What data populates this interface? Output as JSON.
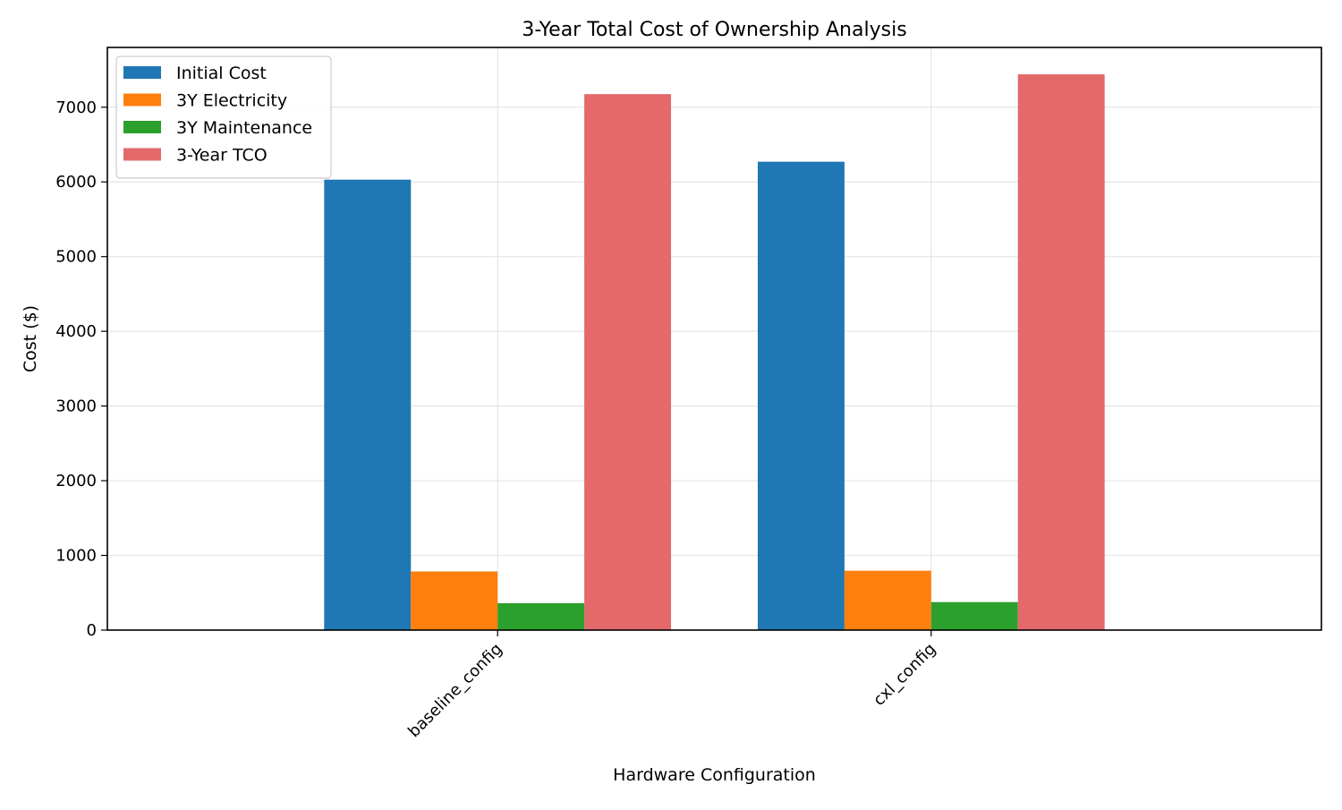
{
  "chart_data": {
    "type": "bar",
    "title": "3-Year Total Cost of Ownership Analysis",
    "xlabel": "Hardware Configuration",
    "ylabel": "Cost ($)",
    "categories": [
      "baseline_config",
      "cxl_config"
    ],
    "series": [
      {
        "name": "Initial Cost",
        "color": "#1f77b4",
        "values": [
          6030,
          6270
        ]
      },
      {
        "name": "3Y Electricity",
        "color": "#ff7f0e",
        "values": [
          785,
          795
        ]
      },
      {
        "name": "3Y Maintenance",
        "color": "#2ca02c",
        "values": [
          360,
          375
        ]
      },
      {
        "name": "3-Year TCO",
        "color": "#e3696b",
        "values": [
          7175,
          7440
        ]
      }
    ],
    "ylim": [
      0,
      7800
    ],
    "yticks": [
      "0",
      "1000",
      "2000",
      "3000",
      "4000",
      "5000",
      "6000",
      "7000"
    ],
    "grid": true,
    "legend_position": "top-left",
    "xtick_rotation": "45deg"
  }
}
